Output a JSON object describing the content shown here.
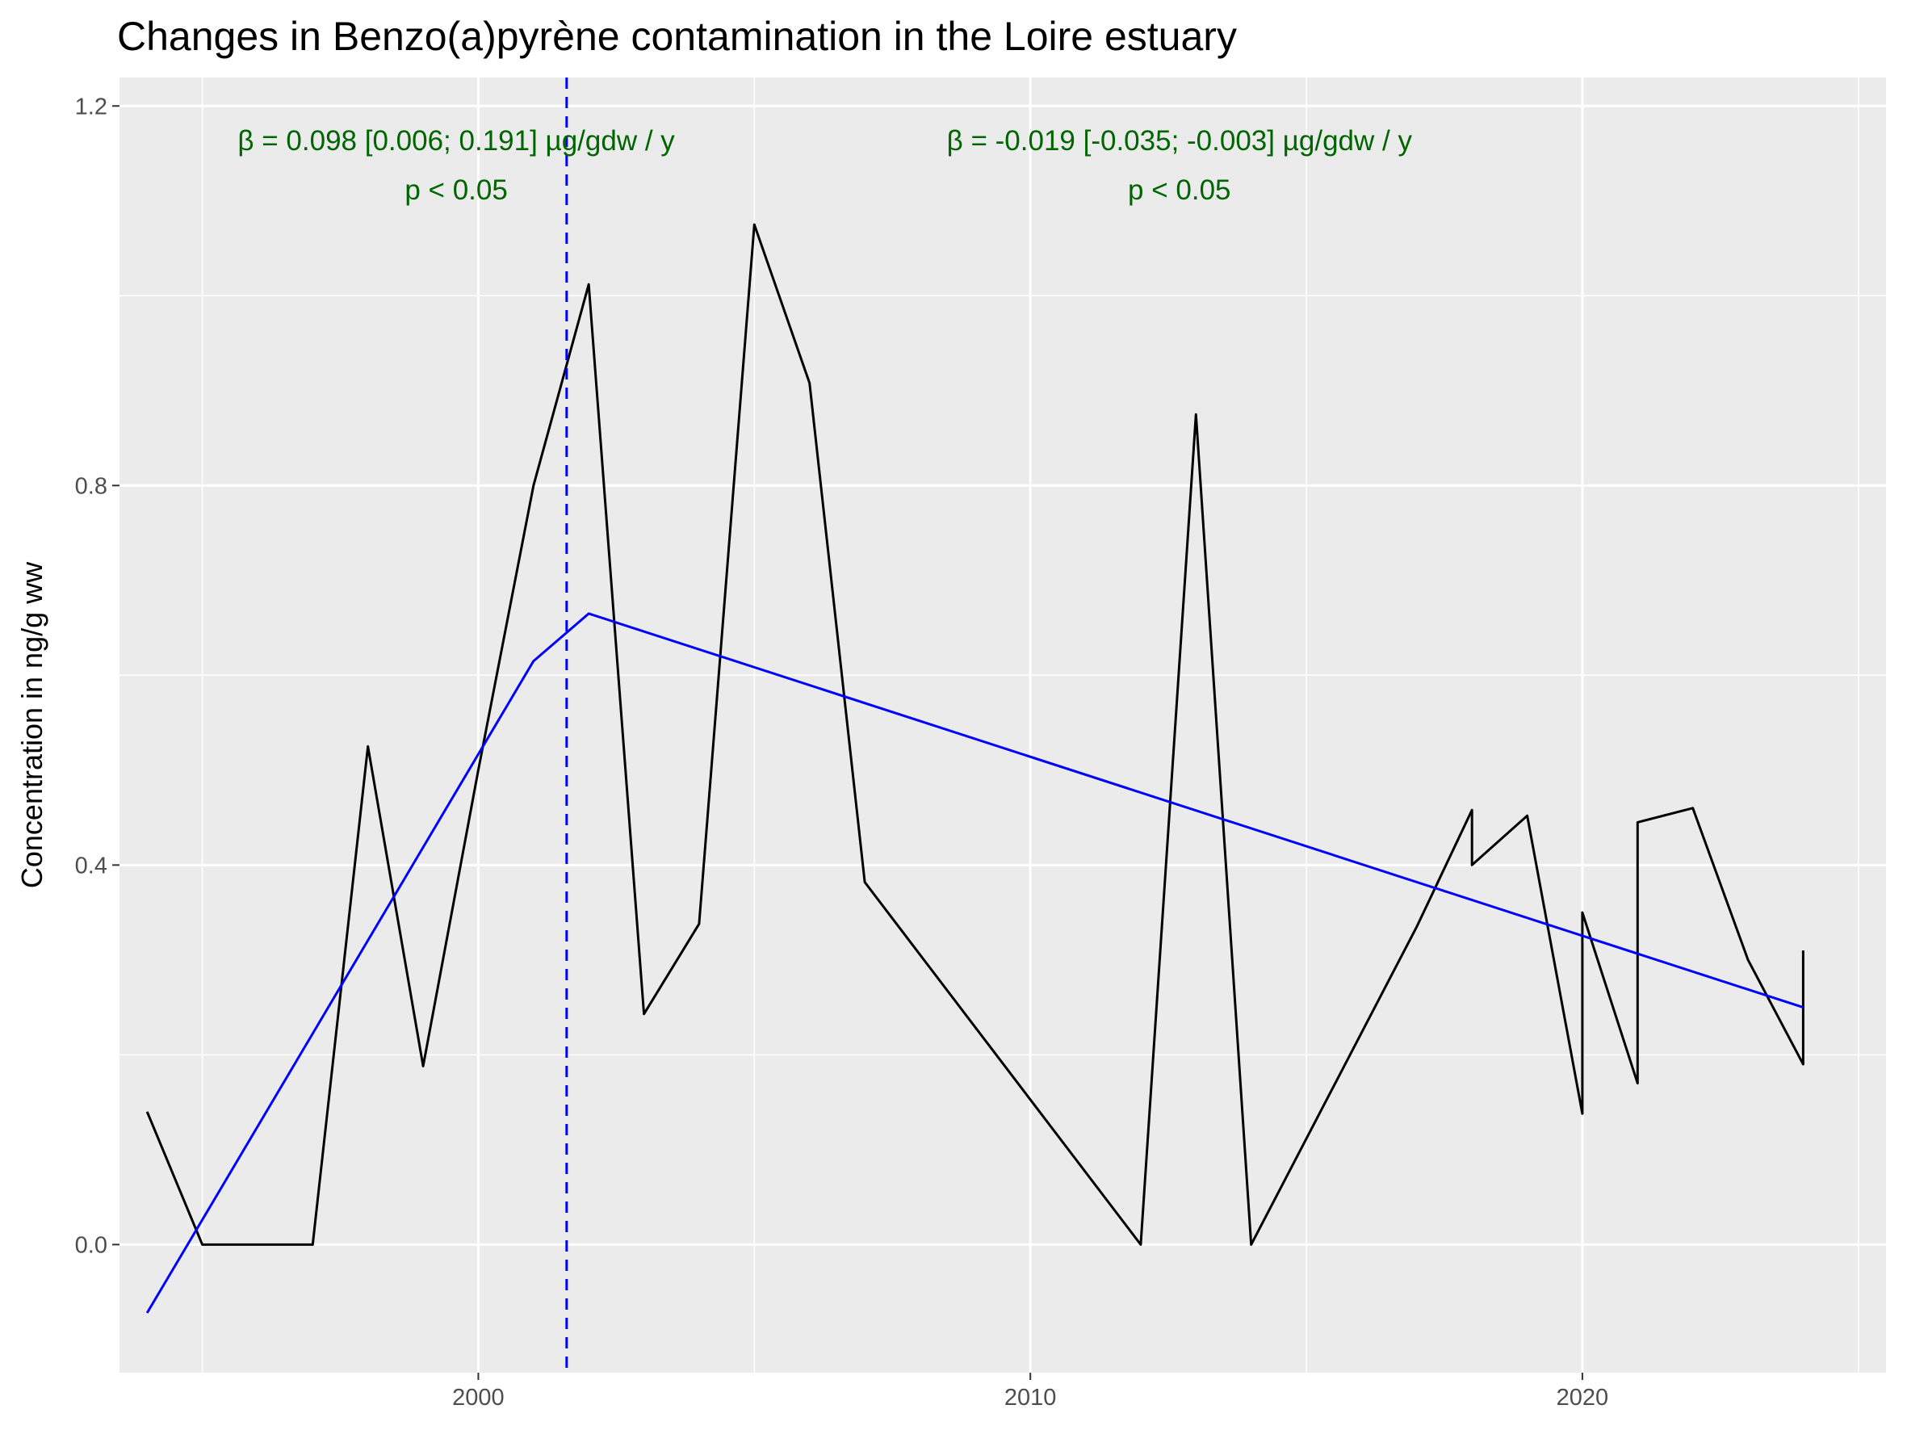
{
  "chart_data": {
    "type": "line",
    "title": "Changes in Benzo(a)pyrène contamination in the Loire estuary",
    "xlabel": "",
    "ylabel": "Concentration in ng/g ww",
    "xlim": [
      1993.5,
      2025.5
    ],
    "ylim": [
      -0.135,
      1.23
    ],
    "x_ticks": [
      2000,
      2010,
      2020
    ],
    "x_tick_labels": [
      "2000",
      "2010",
      "2020"
    ],
    "y_ticks": [
      0.0,
      0.4,
      0.8,
      1.2
    ],
    "y_tick_labels": [
      "0.0",
      "0.4",
      "0.8",
      "1.2"
    ],
    "grid": true,
    "background": "#ebebeb",
    "series": [
      {
        "color": "#000000",
        "x": [
          1994,
          1995,
          1996,
          1997,
          1998,
          1999,
          2000,
          2001,
          2002,
          2003,
          2004,
          2005,
          2006,
          2007,
          2012,
          2013,
          2014,
          2017,
          2018,
          2018,
          2019,
          2020,
          2020,
          2021,
          2021,
          2022,
          2023,
          2024,
          2024
        ],
        "y": [
          0.14,
          0.0,
          0.0,
          0.0,
          0.525,
          0.188,
          0.5,
          0.8,
          1.012,
          0.243,
          0.338,
          1.075,
          0.908,
          0.382,
          0.0,
          0.875,
          0.0,
          0.335,
          0.458,
          0.4,
          0.452,
          0.138,
          0.35,
          0.17,
          0.445,
          0.46,
          0.3,
          0.19,
          0.31
        ]
      },
      {
        "color": "#0000ff",
        "x": [
          1994,
          2001,
          2002,
          2024
        ],
        "y": [
          -0.072,
          0.615,
          0.665,
          0.25
        ]
      }
    ],
    "breakpoint": {
      "x": 2001.6,
      "color": "#0000ff",
      "style": "dashed"
    },
    "annotations": [
      {
        "x": 1999.6,
        "line1": "β = 0.098 [0.006; 0.191] µg/gdw / y",
        "line2": "p < 0.05",
        "color": "#006400"
      },
      {
        "x": 2012.7,
        "line1": "β = -0.019 [-0.035; -0.003] µg/gdw / y",
        "line2": "p < 0.05",
        "color": "#006400"
      }
    ]
  }
}
